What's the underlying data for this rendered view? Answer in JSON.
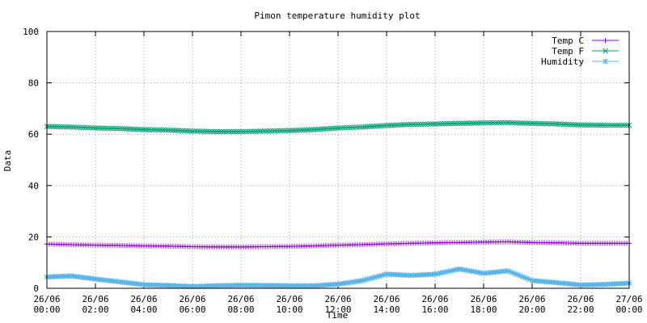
{
  "chart_data": {
    "type": "line",
    "title": "Pimon temperature   humidity plot",
    "xlabel": "Time",
    "ylabel": "Data",
    "ylim": [
      0,
      100
    ],
    "xlim": [
      0,
      24
    ],
    "grid": true,
    "legend_position": "top-right",
    "y_ticks": [
      "0",
      "20",
      "40",
      "60",
      "80",
      "100"
    ],
    "x_ticks": [
      {
        "date": "26/06",
        "time": "00:00"
      },
      {
        "date": "26/06",
        "time": "02:00"
      },
      {
        "date": "26/06",
        "time": "04:00"
      },
      {
        "date": "26/06",
        "time": "06:00"
      },
      {
        "date": "26/06",
        "time": "08:00"
      },
      {
        "date": "26/06",
        "time": "10:00"
      },
      {
        "date": "26/06",
        "time": "12:00"
      },
      {
        "date": "26/06",
        "time": "14:00"
      },
      {
        "date": "26/06",
        "time": "16:00"
      },
      {
        "date": "26/06",
        "time": "18:00"
      },
      {
        "date": "26/06",
        "time": "20:00"
      },
      {
        "date": "26/06",
        "time": "22:00"
      },
      {
        "date": "27/06",
        "time": "00:00"
      }
    ],
    "x": [
      "00:00",
      "01:00",
      "02:00",
      "03:00",
      "04:00",
      "05:00",
      "06:00",
      "07:00",
      "08:00",
      "09:00",
      "10:00",
      "11:00",
      "12:00",
      "13:00",
      "14:00",
      "15:00",
      "16:00",
      "17:00",
      "18:00",
      "19:00",
      "20:00",
      "21:00",
      "22:00",
      "23:00",
      "24:00"
    ],
    "series": [
      {
        "name": "Temp C",
        "color": "#9400d3",
        "marker": "plus",
        "values": [
          17.2,
          17.0,
          16.8,
          16.7,
          16.5,
          16.4,
          16.2,
          16.1,
          16.1,
          16.2,
          16.3,
          16.5,
          16.8,
          17.0,
          17.3,
          17.5,
          17.7,
          17.8,
          18.0,
          18.1,
          17.8,
          17.7,
          17.5,
          17.5,
          17.5
        ]
      },
      {
        "name": "Temp F",
        "color": "#009e73",
        "marker": "cross",
        "values": [
          63.0,
          62.8,
          62.4,
          62.2,
          61.8,
          61.6,
          61.2,
          61.0,
          61.0,
          61.2,
          61.4,
          61.8,
          62.4,
          62.8,
          63.4,
          63.8,
          64.0,
          64.2,
          64.4,
          64.5,
          64.2,
          64.0,
          63.6,
          63.5,
          63.5
        ]
      },
      {
        "name": "Humidity",
        "color": "#56b4e9",
        "marker": "star",
        "values": [
          4.4,
          4.8,
          3.6,
          2.5,
          1.4,
          1.1,
          0.7,
          1.0,
          1.2,
          1.1,
          1.0,
          1.0,
          1.6,
          3.0,
          5.5,
          5.0,
          5.5,
          7.5,
          5.8,
          6.8,
          3.0,
          2.2,
          1.3,
          1.5,
          2.0
        ]
      }
    ]
  }
}
